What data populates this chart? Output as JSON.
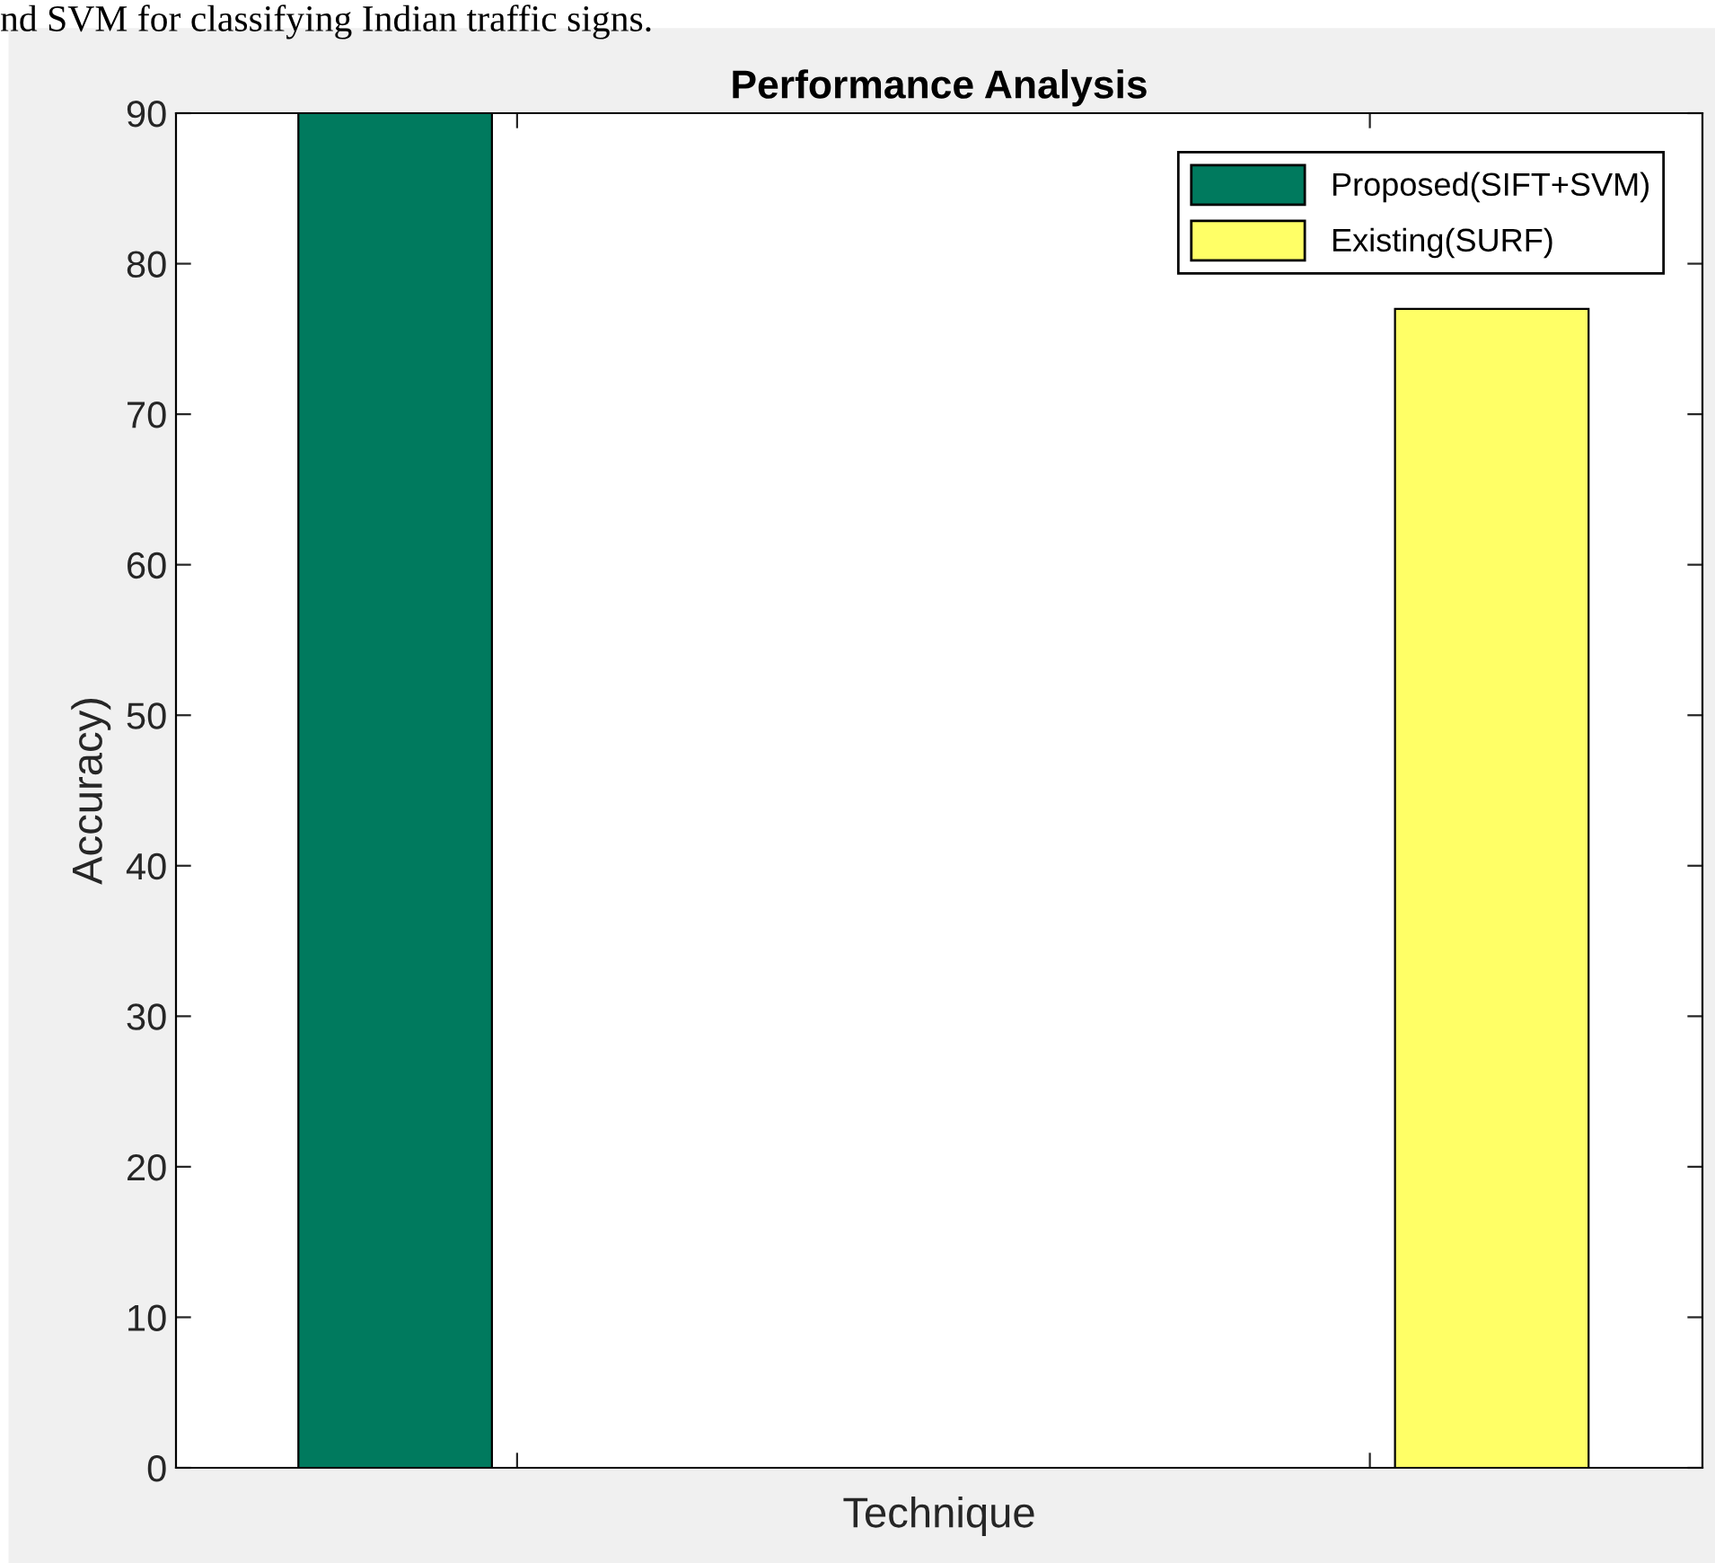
{
  "chart_data": {
    "type": "bar",
    "title": "Performance Analysis",
    "xlabel": "Technique",
    "ylabel": "Accuracy)",
    "annotations": [
      "nd SVM for classifying Indian traffic signs."
    ],
    "categories": [
      null,
      null
    ],
    "series": [
      {
        "name": "Proposed(SIFT+SVM)",
        "color": "#007a5e",
        "values": [
          90,
          0
        ]
      },
      {
        "name": "Existing(SURF)",
        "color": "#ffff66",
        "values": [
          0,
          77
        ]
      }
    ],
    "ylim": [
      0,
      90
    ],
    "yticks": [
      0,
      10,
      20,
      30,
      40,
      50,
      60,
      70,
      80,
      90
    ],
    "grid": false,
    "legend": "top right"
  }
}
